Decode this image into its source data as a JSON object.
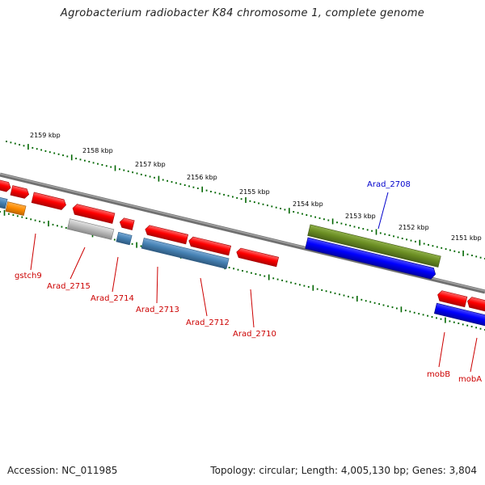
{
  "header": {
    "title": "Agrobacterium radiobacter K84 chromosome 1, complete genome"
  },
  "footer": {
    "accession": "Accession: NC_011985",
    "summary": "Topology: circular; Length: 4,005,130 bp; Genes: 3,804"
  },
  "ruler": {
    "ticks": [
      "2159 kbp",
      "2158 kbp",
      "2157 kbp",
      "2156 kbp",
      "2155 kbp",
      "2154 kbp",
      "2153 kbp",
      "2152 kbp",
      "2151 kbp"
    ]
  },
  "gene_labels": [
    {
      "id": "gstch9",
      "text": "gstch9",
      "color": "#cc0000"
    },
    {
      "id": "arad2715",
      "text": "Arad_2715",
      "color": "#cc0000"
    },
    {
      "id": "arad2714",
      "text": "Arad_2714",
      "color": "#cc0000"
    },
    {
      "id": "arad2713",
      "text": "Arad_2713",
      "color": "#cc0000"
    },
    {
      "id": "arad2712",
      "text": "Arad_2712",
      "color": "#cc0000"
    },
    {
      "id": "arad2710",
      "text": "Arad_2710",
      "color": "#cc0000"
    },
    {
      "id": "arad2708",
      "text": "Arad_2708",
      "color": "#0000cc"
    },
    {
      "id": "mobB",
      "text": "mobB",
      "color": "#cc0000"
    },
    {
      "id": "mobA",
      "text": "mobA",
      "color": "#cc0000"
    }
  ],
  "colors": {
    "backbone": "#808080",
    "tick": "#006600",
    "cds_red": "#ff0000",
    "cds_blue": "#0000ff",
    "cds_olive": "#6b8e23",
    "cds_steel": "#4682b4",
    "cds_gray": "#b8b8b8",
    "cds_orange": "#ff8c00"
  }
}
